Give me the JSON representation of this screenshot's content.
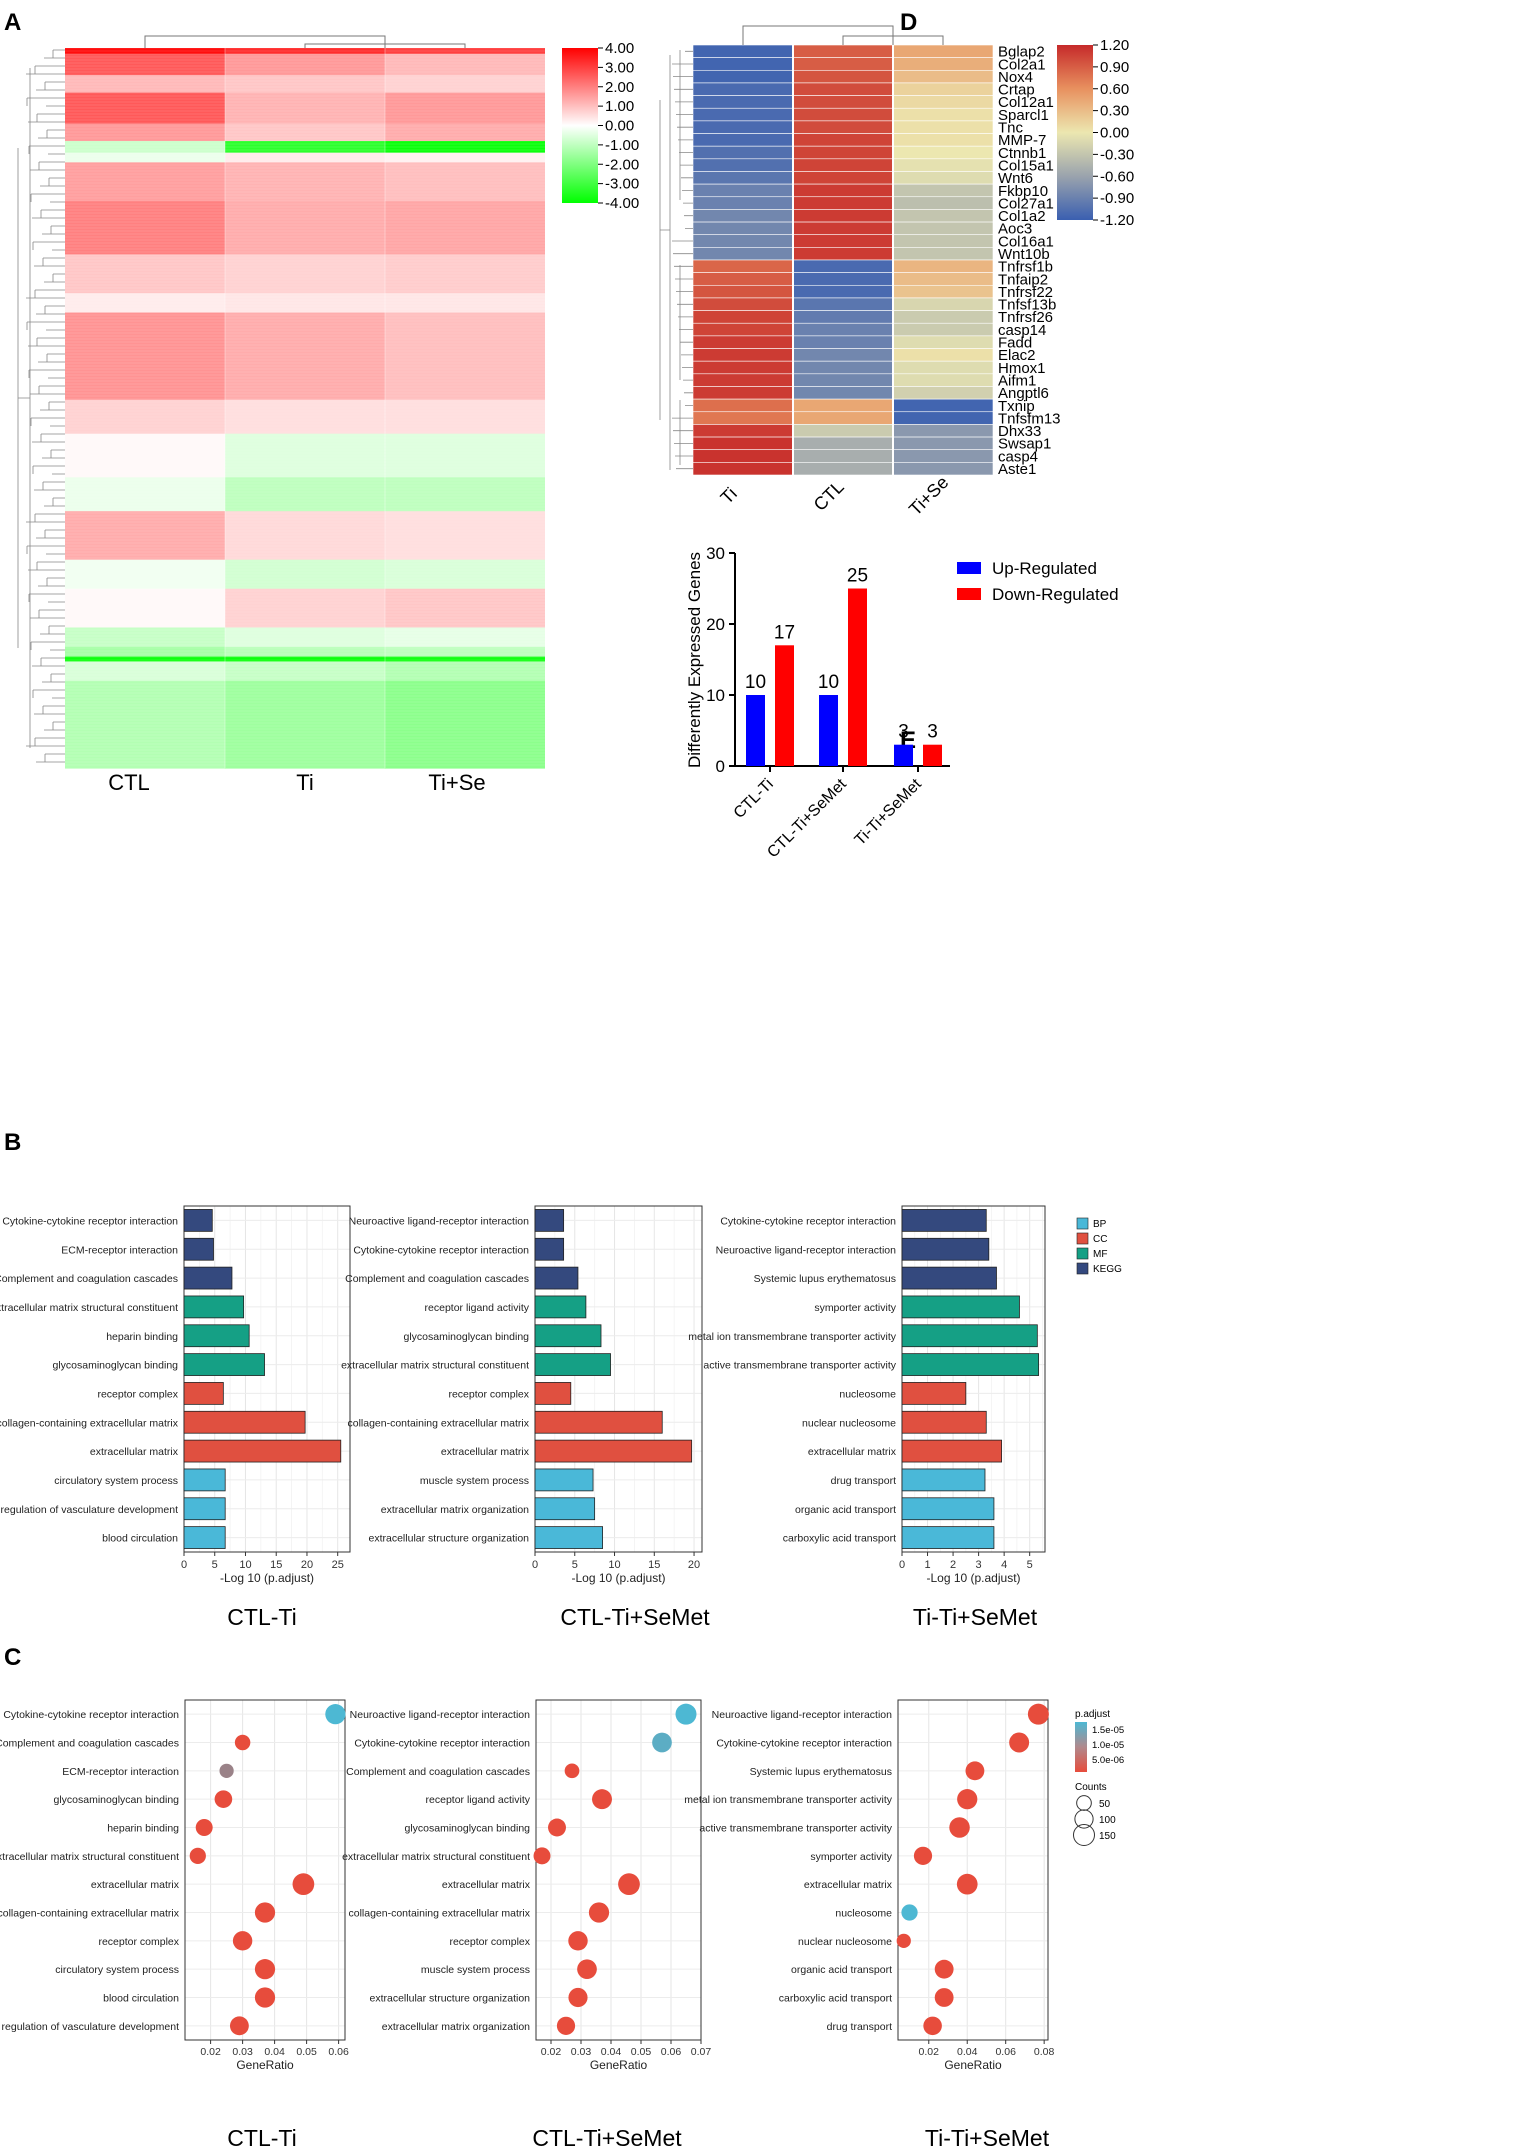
{
  "figure": {
    "panel_letters": [
      "A",
      "B",
      "C",
      "D",
      "E"
    ]
  },
  "chart_data": [
    {
      "id": "A",
      "type": "heatmap",
      "title": "",
      "columns": [
        "CTL",
        "Ti",
        "Ti+Se"
      ],
      "colorbar": {
        "ticks": [
          "4.00",
          "3.00",
          "2.00",
          "1.00",
          "0.00",
          "-1.00",
          "-2.00",
          "-3.00",
          "-4.00"
        ],
        "min": -4,
        "max": 4,
        "colors": [
          "#00ff00",
          "#ffffff",
          "#ff0000"
        ]
      },
      "row_bands": [
        {
          "h": 6,
          "v": [
            3.8,
            3.3,
            3.0
          ]
        },
        {
          "h": 22,
          "v": [
            2.6,
            1.6,
            1.1
          ]
        },
        {
          "h": 18,
          "v": [
            1.1,
            0.9,
            0.7
          ]
        },
        {
          "h": 32,
          "v": [
            2.6,
            1.2,
            1.6
          ]
        },
        {
          "h": 18,
          "v": [
            1.6,
            0.9,
            1.3
          ]
        },
        {
          "h": 12,
          "v": [
            -0.8,
            -3.3,
            -3.8
          ]
        },
        {
          "h": 10,
          "v": [
            -0.3,
            0.3,
            0.2
          ]
        },
        {
          "h": 40,
          "v": [
            1.5,
            1.2,
            1.0
          ]
        },
        {
          "h": 55,
          "v": [
            2.0,
            1.3,
            1.4
          ]
        },
        {
          "h": 40,
          "v": [
            0.9,
            0.7,
            0.8
          ]
        },
        {
          "h": 20,
          "v": [
            0.3,
            0.4,
            0.4
          ]
        },
        {
          "h": 90,
          "v": [
            1.7,
            1.3,
            1.0
          ]
        },
        {
          "h": 35,
          "v": [
            0.7,
            0.5,
            0.5
          ]
        },
        {
          "h": 45,
          "v": [
            0.1,
            -0.5,
            -0.5
          ]
        },
        {
          "h": 35,
          "v": [
            -0.3,
            -1.0,
            -1.0
          ]
        },
        {
          "h": 50,
          "v": [
            1.3,
            0.6,
            0.5
          ]
        },
        {
          "h": 30,
          "v": [
            -0.2,
            -0.7,
            -0.6
          ]
        },
        {
          "h": 40,
          "v": [
            0.1,
            0.7,
            0.9
          ]
        },
        {
          "h": 20,
          "v": [
            -0.9,
            -0.5,
            -0.4
          ]
        },
        {
          "h": 10,
          "v": [
            -1.4,
            -1.1,
            -1.0
          ]
        },
        {
          "h": 5,
          "v": [
            -3.8,
            -3.8,
            -3.7
          ]
        },
        {
          "h": 20,
          "v": [
            -0.6,
            -0.9,
            -1.2
          ]
        },
        {
          "h": 90,
          "v": [
            -1.2,
            -1.5,
            -1.8
          ]
        }
      ]
    },
    {
      "id": "D",
      "type": "heatmap",
      "columns": [
        "Ti",
        "CTL",
        "Ti+Se"
      ],
      "rows": [
        "Bglap2",
        "Col2a1",
        "Nox4",
        "Crtap",
        "Col12a1",
        "Sparcl1",
        "Tnc",
        "MMP-7",
        "Ctnnb1",
        "Col15a1",
        "Wnt6",
        "Fkbp10",
        "Col27a1",
        "Col1a2",
        "Aoc3",
        "Col16a1",
        "Wnt10b",
        "Tnfrsf1b",
        "Tnfaip2",
        "Tnfrsf22",
        "Tnfsf13b",
        "Tnfrsf26",
        "casp14",
        "Fadd",
        "Elac2",
        "Hmox1",
        "Aifm1",
        "Angptl6",
        "Txnip",
        "Tnfsfm13",
        "Dhx33",
        "Swsap1",
        "casp4",
        "Aste1"
      ],
      "values": [
        [
          -1.15,
          0.9,
          0.45
        ],
        [
          -1.15,
          0.9,
          0.4
        ],
        [
          -1.15,
          0.95,
          0.3
        ],
        [
          -1.1,
          1.0,
          0.15
        ],
        [
          -1.1,
          1.0,
          0.1
        ],
        [
          -1.1,
          1.0,
          0.05
        ],
        [
          -1.1,
          1.0,
          0.05
        ],
        [
          -1.1,
          1.05,
          0.05
        ],
        [
          -1.05,
          1.05,
          0.0
        ],
        [
          -1.05,
          1.05,
          -0.05
        ],
        [
          -1.0,
          1.05,
          -0.1
        ],
        [
          -0.9,
          1.1,
          -0.3
        ],
        [
          -0.9,
          1.1,
          -0.35
        ],
        [
          -0.85,
          1.1,
          -0.3
        ],
        [
          -0.85,
          1.1,
          -0.3
        ],
        [
          -0.85,
          1.1,
          -0.3
        ],
        [
          -0.85,
          1.1,
          -0.3
        ],
        [
          0.85,
          -1.1,
          0.35
        ],
        [
          0.9,
          -1.1,
          0.3
        ],
        [
          0.95,
          -1.1,
          0.25
        ],
        [
          1.0,
          -1.0,
          -0.15
        ],
        [
          1.05,
          -0.95,
          -0.25
        ],
        [
          1.05,
          -0.9,
          -0.25
        ],
        [
          1.1,
          -0.9,
          -0.1
        ],
        [
          1.1,
          -0.85,
          0.05
        ],
        [
          1.1,
          -0.85,
          -0.1
        ],
        [
          1.1,
          -0.85,
          -0.1
        ],
        [
          1.1,
          -0.85,
          -0.2
        ],
        [
          0.8,
          0.45,
          -1.15
        ],
        [
          0.75,
          0.45,
          -1.15
        ],
        [
          1.1,
          -0.25,
          -0.7
        ],
        [
          1.15,
          -0.5,
          -0.7
        ],
        [
          1.15,
          -0.5,
          -0.7
        ],
        [
          1.15,
          -0.5,
          -0.7
        ]
      ],
      "colorbar": {
        "ticks": [
          "1.20",
          "0.90",
          "0.60",
          "0.30",
          "0.00",
          "-0.30",
          "-0.60",
          "-0.90",
          "-1.20"
        ],
        "min": -1.2,
        "max": 1.2
      }
    },
    {
      "id": "E",
      "type": "bar",
      "categories": [
        "CTL-Ti",
        "CTL-Ti+SeMet",
        "Ti-Ti+SeMet"
      ],
      "series": [
        {
          "name": "Up-Regulated",
          "values": [
            10,
            10,
            3
          ],
          "color": "#0000ff"
        },
        {
          "name": "Down-Regulated",
          "values": [
            17,
            25,
            3
          ],
          "color": "#ff0000"
        }
      ],
      "ylabel": "Differently Expressed Genes",
      "ylim": [
        0,
        30
      ],
      "yticks": [
        "0",
        "10",
        "20",
        "30"
      ]
    },
    {
      "id": "B",
      "type": "bar",
      "orientation": "horizontal",
      "legend": [
        {
          "name": "BP",
          "color": "#4ab8d8"
        },
        {
          "name": "CC",
          "color": "#e05040"
        },
        {
          "name": "MF",
          "color": "#15a085"
        },
        {
          "name": "KEGG",
          "color": "#34497e"
        }
      ],
      "panels": [
        {
          "title": "CTL-Ti",
          "xlabel": "-Log 10 (p.adjust)",
          "xlim": [
            0,
            27
          ],
          "xticks": [
            0,
            5,
            10,
            15,
            20,
            25
          ],
          "categories": [
            "Cytokine-cytokine receptor interaction",
            "ECM-receptor interaction",
            "Complement and coagulation cascades",
            "extracellular matrix structural constituent",
            "heparin binding",
            "glycosaminoglycan binding",
            "receptor complex",
            "collagen-containing extracellular matrix",
            "extracellular matrix",
            "circulatory system process",
            "regulation of vasculature development",
            "blood circulation"
          ],
          "groups": [
            "KEGG",
            "KEGG",
            "KEGG",
            "MF",
            "MF",
            "MF",
            "CC",
            "CC",
            "CC",
            "BP",
            "BP",
            "BP"
          ],
          "values": [
            4.6,
            4.8,
            7.8,
            9.7,
            10.6,
            13.1,
            6.4,
            19.7,
            25.5,
            6.7,
            6.7,
            6.7
          ]
        },
        {
          "title": "CTL-Ti+SeMet",
          "xlabel": "-Log 10 (p.adjust)",
          "xlim": [
            0,
            21
          ],
          "xticks": [
            0,
            5,
            10,
            15,
            20
          ],
          "categories": [
            "Neuroactive ligand-receptor interaction",
            "Cytokine-cytokine receptor interaction",
            "Complement and coagulation cascades",
            "receptor ligand activity",
            "glycosaminoglycan binding",
            "extracellular matrix structural constituent",
            "receptor complex",
            "collagen-containing extracellular matrix",
            "extracellular matrix",
            "muscle system process",
            "extracellular matrix organization",
            "extracellular structure organization"
          ],
          "groups": [
            "KEGG",
            "KEGG",
            "KEGG",
            "MF",
            "MF",
            "MF",
            "CC",
            "CC",
            "CC",
            "BP",
            "BP",
            "BP"
          ],
          "values": [
            3.6,
            3.6,
            5.4,
            6.4,
            8.3,
            9.5,
            4.5,
            16.0,
            19.7,
            7.3,
            7.5,
            8.5
          ]
        },
        {
          "title": "Ti-Ti+SeMet",
          "xlabel": "-Log 10 (p.adjust)",
          "xlim": [
            0,
            5.6
          ],
          "xticks": [
            0,
            1,
            2,
            3,
            4,
            5
          ],
          "categories": [
            "Cytokine-cytokine receptor interaction",
            "Neuroactive ligand-receptor interaction",
            "Systemic lupus erythematosus",
            "symporter activity",
            "metal ion transmembrane transporter activity",
            "active transmembrane transporter activity",
            "nucleosome",
            "nuclear nucleosome",
            "extracellular matrix",
            "drug transport",
            "organic acid transport",
            "carboxylic acid transport"
          ],
          "groups": [
            "KEGG",
            "KEGG",
            "KEGG",
            "MF",
            "MF",
            "MF",
            "CC",
            "CC",
            "CC",
            "BP",
            "BP",
            "BP"
          ],
          "values": [
            3.3,
            3.4,
            3.7,
            4.6,
            5.3,
            5.35,
            2.5,
            3.3,
            3.9,
            3.25,
            3.6,
            3.6
          ]
        }
      ]
    },
    {
      "id": "C",
      "type": "scatter",
      "legend": {
        "color_title": "p.adjust",
        "color_ticks": [
          "1.5e-05",
          "1.0e-05",
          "5.0e-06"
        ],
        "size_title": "Counts",
        "size_ticks": [
          50,
          100,
          150
        ]
      },
      "panels": [
        {
          "title": "CTL-Ti",
          "xlabel": "GeneRatio",
          "xlim": [
            0.012,
            0.062
          ],
          "xticks": [
            0.02,
            0.03,
            0.04,
            0.05,
            0.06
          ],
          "xticklabels": [
            "0.02",
            "0.03",
            "0.04",
            "0.05",
            "0.06"
          ],
          "categories": [
            "Cytokine-cytokine receptor interaction",
            "Complement and coagulation cascades",
            "ECM-receptor interaction",
            "glycosaminoglycan binding",
            "heparin binding",
            "extracellular matrix structural constituent",
            "extracellular matrix",
            "collagen-containing extracellular matrix",
            "receptor complex",
            "circulatory system process",
            "blood circulation",
            "regulation of vasculature development"
          ],
          "gene_ratio": [
            0.059,
            0.03,
            0.025,
            0.024,
            0.018,
            0.016,
            0.049,
            0.037,
            0.03,
            0.037,
            0.037,
            0.029
          ],
          "counts": [
            135,
            60,
            45,
            90,
            80,
            70,
            165,
            135,
            120,
            135,
            135,
            110
          ],
          "p_adjust_level": [
            0.0,
            1.0,
            0.5,
            1.0,
            1.0,
            1.0,
            1.0,
            1.0,
            1.0,
            1.0,
            1.0,
            1.0
          ]
        },
        {
          "title": "CTL-Ti+SeMet",
          "xlabel": "GeneRatio",
          "xlim": [
            0.015,
            0.07
          ],
          "xticks": [
            0.02,
            0.03,
            0.04,
            0.05,
            0.06,
            0.07
          ],
          "xticklabels": [
            "0.02",
            "0.03",
            "0.04",
            "0.05",
            "0.06",
            "0.07"
          ],
          "categories": [
            "Neuroactive ligand-receptor interaction",
            "Cytokine-cytokine receptor interaction",
            "Complement and coagulation cascades",
            "receptor ligand activity",
            "glycosaminoglycan binding",
            "extracellular matrix structural constituent",
            "extracellular matrix",
            "collagen-containing extracellular matrix",
            "receptor complex",
            "muscle system process",
            "extracellular structure organization",
            "extracellular matrix organization"
          ],
          "gene_ratio": [
            0.065,
            0.057,
            0.027,
            0.037,
            0.022,
            0.017,
            0.046,
            0.036,
            0.029,
            0.032,
            0.029,
            0.025
          ],
          "counts": [
            150,
            125,
            50,
            130,
            95,
            80,
            165,
            135,
            120,
            125,
            115,
            100
          ],
          "p_adjust_level": [
            0.0,
            0.1,
            1.0,
            1.0,
            1.0,
            1.0,
            1.0,
            1.0,
            1.0,
            1.0,
            1.0,
            1.0
          ]
        },
        {
          "title": "Ti-Ti+SeMet",
          "xlabel": "GeneRatio",
          "xlim": [
            0.004,
            0.082
          ],
          "xticks": [
            0.02,
            0.04,
            0.06,
            0.08
          ],
          "xticklabels": [
            "0.02",
            "0.04",
            "0.06",
            "0.08"
          ],
          "categories": [
            "Neuroactive ligand-receptor interaction",
            "Cytokine-cytokine receptor interaction",
            "Systemic lupus erythematosus",
            "metal ion transmembrane transporter activity",
            "active transmembrane transporter activity",
            "symporter activity",
            "extracellular matrix",
            "nucleosome",
            "nuclear nucleosome",
            "organic acid transport",
            "carboxylic acid transport",
            "drug transport"
          ],
          "gene_ratio": [
            0.077,
            0.067,
            0.044,
            0.04,
            0.036,
            0.017,
            0.04,
            0.01,
            0.007,
            0.028,
            0.028,
            0.022
          ],
          "counts": [
            150,
            130,
            110,
            135,
            140,
            100,
            145,
            70,
            45,
            110,
            110,
            105
          ],
          "p_adjust_level": [
            1.0,
            1.0,
            1.0,
            1.0,
            1.0,
            1.0,
            1.0,
            0.0,
            1.0,
            1.0,
            1.0,
            1.0
          ]
        }
      ]
    }
  ]
}
